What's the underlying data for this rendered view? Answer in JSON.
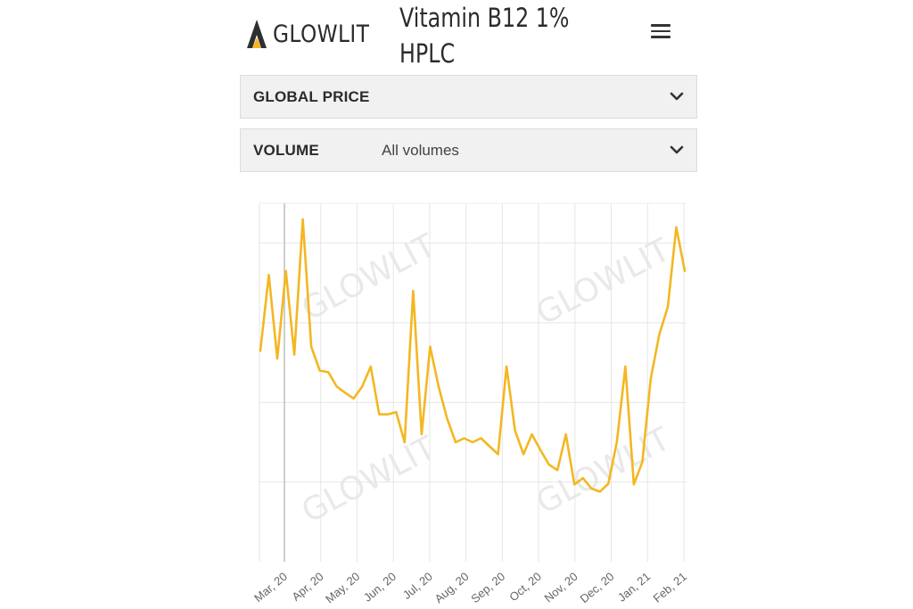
{
  "brand": {
    "name": "GLOWLIT",
    "icon": "glowlit-logo-icon",
    "accent": "#f3b722"
  },
  "product_title": {
    "line1": "Vitamin B12 1%",
    "line2": "HPLC"
  },
  "menu": {
    "icon": "hamburger-menu-icon"
  },
  "filters": [
    {
      "label": "GLOBAL PRICE",
      "value": "",
      "icon": "chevron-down-icon"
    },
    {
      "label": "VOLUME",
      "value": "All volumes",
      "icon": "chevron-down-icon"
    }
  ],
  "watermark": "GLOWLIT",
  "chart_data": {
    "type": "line",
    "title": "",
    "xlabel": "",
    "ylabel": "",
    "grid": true,
    "y_tick_labels_shown": false,
    "ylim": [
      0,
      4.5
    ],
    "line_color": "#f3b722",
    "x_ticks": [
      "Mar, 20",
      "Apr, 20",
      "May, 20",
      "Jun, 20",
      "Jul, 20",
      "Aug, 20",
      "Sep, 20",
      "Oct, 20",
      "Nov, 20",
      "Dec, 20",
      "Jan, 21",
      "Feb, 21"
    ],
    "series": [
      {
        "values": [
          2.65,
          3.6,
          2.55,
          3.65,
          2.6,
          4.3,
          2.7,
          2.4,
          2.38,
          2.2,
          2.12,
          2.05,
          2.2,
          2.45,
          1.85,
          1.85,
          1.88,
          1.5,
          3.4,
          1.6,
          2.7,
          2.2,
          1.8,
          1.5,
          1.55,
          1.5,
          1.55,
          1.45,
          1.35,
          2.45,
          1.65,
          1.35,
          1.6,
          1.4,
          1.22,
          1.15,
          1.6,
          0.97,
          1.05,
          0.92,
          0.88,
          0.98,
          1.5,
          2.45,
          0.97,
          1.25,
          2.3,
          2.85,
          3.2,
          4.2,
          3.65
        ]
      }
    ]
  }
}
